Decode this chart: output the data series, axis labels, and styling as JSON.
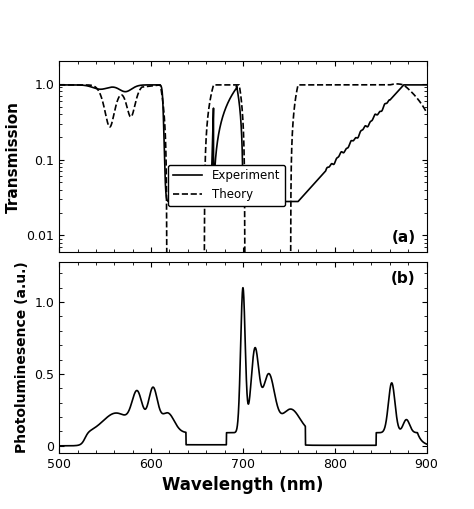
{
  "xlim": [
    500,
    900
  ],
  "panel_a": {
    "ylabel": "Transmission",
    "ylim_log": [
      0.006,
      2.0
    ],
    "yticks": [
      0.01,
      0.1,
      1.0
    ],
    "yticklabels": [
      "0.01",
      "0.1",
      "1.0"
    ],
    "label_a": "(a)",
    "legend_experiment": "Experiment",
    "legend_theory": "Theory"
  },
  "panel_b": {
    "ylabel": "Photoluminesence (a.u.)",
    "ylim": [
      -0.05,
      1.28
    ],
    "yticks": [
      0,
      0.5,
      1.0
    ],
    "yticklabels": [
      "0",
      "0.5",
      "1.0"
    ],
    "label_b": "(b)"
  },
  "xlabel": "Wavelength (nm)",
  "xticks": [
    500,
    600,
    700,
    800,
    900
  ],
  "background_color": "#ffffff",
  "line_color": "#000000"
}
